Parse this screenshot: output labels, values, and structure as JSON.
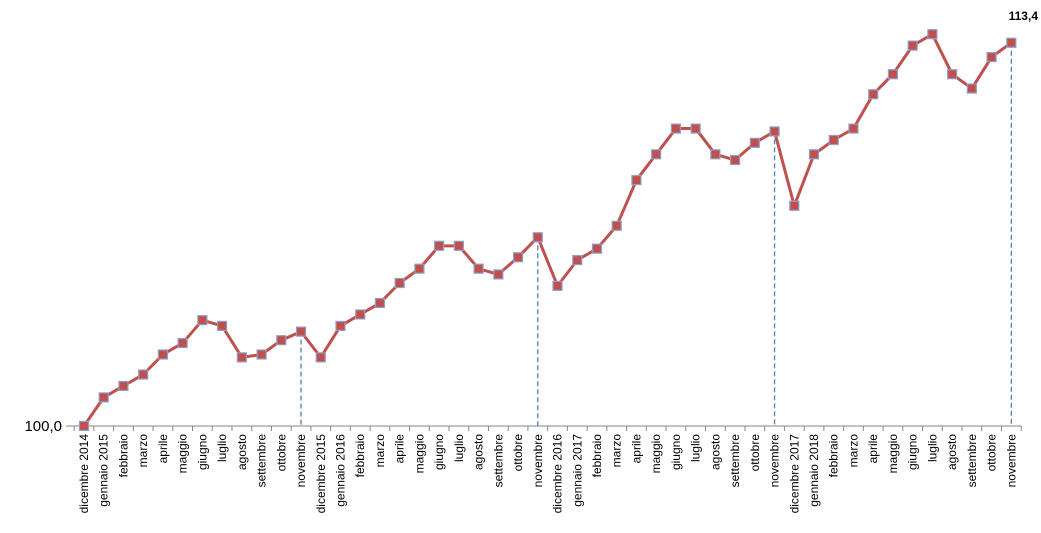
{
  "chart_data": {
    "type": "line",
    "title": "",
    "xlabel": "",
    "ylabel": "",
    "ylim": [
      100.0,
      113.8
    ],
    "y_tick_labels": [
      "100,0"
    ],
    "end_label": "113,4",
    "grid": false,
    "legend": "none",
    "line_color": "#C0504D",
    "marker_color": "#C0504D",
    "marker_edge_color": "#8EA0C8",
    "dropline_color": "#4F81BD",
    "droplines_at": [
      "novembre",
      "novembre",
      "novembre",
      "novembre"
    ],
    "categories": [
      "dicembre 2014",
      "gennaio 2015",
      "febbraio",
      "marzo",
      "aprile",
      "maggio",
      "giugno",
      "luglio",
      "agosto",
      "settembre",
      "ottobre",
      "novembre",
      "dicembre 2015",
      "gennaio 2016",
      "febbraio",
      "marzo",
      "aprile",
      "maggio",
      "giugno",
      "luglio",
      "agosto",
      "settembre",
      "ottobre",
      "novembre",
      "dicembre 2016",
      "gennaio 2017",
      "febbraio",
      "marzo",
      "aprile",
      "maggio",
      "giugno",
      "luglio",
      "agosto",
      "settembre",
      "ottobre",
      "novembre",
      "dicembre 2017",
      "gennaio 2018",
      "febbraio",
      "marzo",
      "aprile",
      "maggio",
      "giugno",
      "luglio",
      "agosto",
      "settembre",
      "ottobre",
      "novembre"
    ],
    "values": [
      100.0,
      101.0,
      101.4,
      101.8,
      102.5,
      102.9,
      103.7,
      103.5,
      102.4,
      102.5,
      103.0,
      103.3,
      102.4,
      103.5,
      103.9,
      104.3,
      105.0,
      105.5,
      106.3,
      106.3,
      105.5,
      105.3,
      105.9,
      106.6,
      104.9,
      105.8,
      106.2,
      107.0,
      108.6,
      109.5,
      110.4,
      110.4,
      109.5,
      109.3,
      109.9,
      110.3,
      107.7,
      109.5,
      110.0,
      110.4,
      111.6,
      112.3,
      113.3,
      113.7,
      112.3,
      111.8,
      112.9,
      113.4
    ]
  }
}
